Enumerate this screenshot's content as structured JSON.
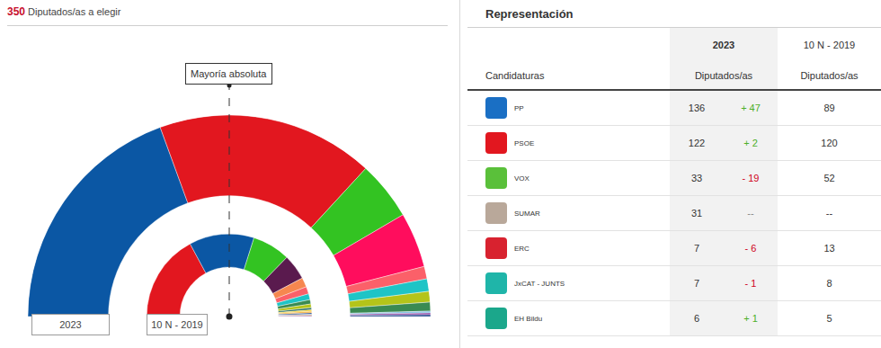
{
  "header": {
    "count": 350,
    "text": "Diputados/as a elegir"
  },
  "chart_data": {
    "type": "hemicycle",
    "majority_label": "Mayoría absoluta",
    "series": [
      {
        "name": "2023",
        "values": [
          136,
          122,
          33,
          31,
          7,
          7,
          6,
          5,
          1,
          1,
          1
        ],
        "colors": [
          "#0b57a4",
          "#e2171f",
          "#33c322",
          "#ff0d5d",
          "#fb6069",
          "#1ec4c6",
          "#b4c41a",
          "#3a8a52",
          "#7bbde4",
          "#8a3fa0",
          "#1d3f8a"
        ]
      },
      {
        "name": "10 N - 2019",
        "values": [
          120,
          89,
          52,
          35,
          13,
          10,
          8,
          6,
          5,
          3,
          2,
          2,
          2,
          1,
          1,
          1
        ],
        "colors": [
          "#e2171f",
          "#0b57a4",
          "#33c322",
          "#5a1a4e",
          "#f6874f",
          "#fb6069",
          "#1ec4c6",
          "#3a8a52",
          "#b4c41a",
          "#2a6e63",
          "#f3d024",
          "#f5a623",
          "#1d3f8a",
          "#7bbde4",
          "#b5651d",
          "#8a3fa0"
        ]
      }
    ]
  },
  "table": {
    "title": "Representación",
    "columns": [
      "Candidaturas",
      "2023",
      "10 N - 2019"
    ],
    "subheader": "Diputados/as",
    "rows": [
      {
        "name": "PP",
        "seats": 136,
        "change": "+ 47",
        "prev": 89,
        "color": "#1a6fc4"
      },
      {
        "name": "PSOE",
        "seats": 122,
        "change": "+ 2",
        "prev": 120,
        "color": "#e2171f"
      },
      {
        "name": "VOX",
        "seats": 33,
        "change": "- 19",
        "prev": 52,
        "color": "#5ac03a"
      },
      {
        "name": "SUMAR",
        "seats": 31,
        "change": "--",
        "prev": "--",
        "color": "#b9a89a"
      },
      {
        "name": "ERC",
        "seats": 7,
        "change": "- 6",
        "prev": 13,
        "color": "#d8222f"
      },
      {
        "name": "JxCAT - JUNTS",
        "seats": 7,
        "change": "- 1",
        "prev": 8,
        "color": "#1fb5a9"
      },
      {
        "name": "EH Bildu",
        "seats": 6,
        "change": "+ 1",
        "prev": 5,
        "color": "#1ba78b"
      }
    ]
  }
}
